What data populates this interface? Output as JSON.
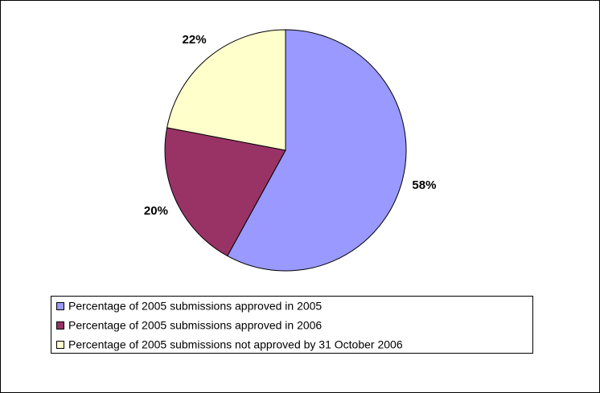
{
  "chart_data": {
    "type": "pie",
    "categories": [
      "Percentage of 2005 submissions approved in 2005",
      "Percentage of 2005 submissions approved in 2006",
      "Percentage of 2005 submissions not approved by 31 October 2006"
    ],
    "values": [
      58,
      20,
      22
    ],
    "value_labels": [
      "58%",
      "20%",
      "22%"
    ],
    "colors": [
      "#9999ff",
      "#993366",
      "#ffffcc"
    ]
  }
}
